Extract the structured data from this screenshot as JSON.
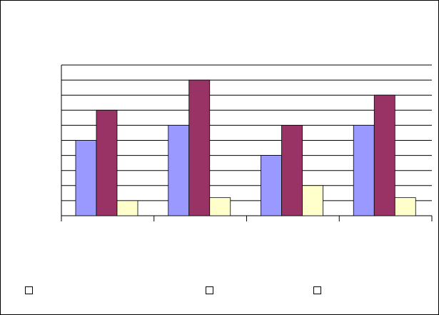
{
  "chart_data": {
    "type": "bar",
    "title": "",
    "xlabel": "",
    "ylabel": "",
    "categories": [
      "",
      "",
      "",
      ""
    ],
    "ylim": [
      0,
      10
    ],
    "grid": true,
    "legend_position": "bottom",
    "series": [
      {
        "color": "#9999ff",
        "values": [
          5,
          6,
          4,
          6
        ]
      },
      {
        "color": "#993366",
        "values": [
          7,
          9,
          6,
          8
        ]
      },
      {
        "color": "#ffffcc",
        "values": [
          1,
          1.2,
          2,
          1.2
        ]
      }
    ]
  },
  "legend": [
    {
      "label": ""
    },
    {
      "label": ""
    },
    {
      "label": ""
    }
  ]
}
